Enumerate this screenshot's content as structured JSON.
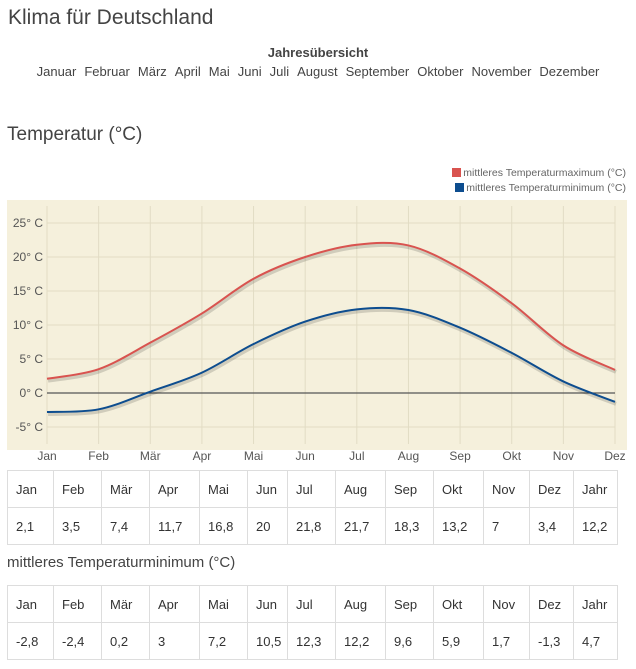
{
  "page_title": "Klima für Deutschland",
  "overview": {
    "label": "Jahresübersicht",
    "months": [
      "Januar",
      "Februar",
      "März",
      "April",
      "Mai",
      "Juni",
      "Juli",
      "August",
      "September",
      "Oktober",
      "November",
      "Dezember"
    ]
  },
  "section_title": "Temperatur (°C)",
  "colors": {
    "max": "#d9534f",
    "min": "#0d4d8f",
    "plot_bg": "#f5f0dc"
  },
  "chart_data": {
    "type": "line",
    "categories": [
      "Jan",
      "Feb",
      "Mär",
      "Apr",
      "Mai",
      "Jun",
      "Jul",
      "Aug",
      "Sep",
      "Okt",
      "Nov",
      "Dez"
    ],
    "y_ticks": [
      "25° C",
      "20° C",
      "15° C",
      "10° C",
      "5° C",
      "0° C",
      "-5° C"
    ],
    "ylim": [
      -7.5,
      27.5
    ],
    "series": [
      {
        "name": "mittleres Temperaturmaximum (°C)",
        "values": [
          2.1,
          3.5,
          7.4,
          11.7,
          16.8,
          20,
          21.8,
          21.7,
          18.3,
          13.2,
          7,
          3.4
        ]
      },
      {
        "name": "mittleres Temperaturminimum (°C)",
        "values": [
          -2.8,
          -2.4,
          0.2,
          3,
          7.2,
          10.5,
          12.3,
          12.2,
          9.6,
          5.9,
          1.7,
          -1.3
        ]
      }
    ]
  },
  "table_max": {
    "headers": [
      "Jan",
      "Feb",
      "Mär",
      "Apr",
      "Mai",
      "Jun",
      "Jul",
      "Aug",
      "Sep",
      "Okt",
      "Nov",
      "Dez",
      "Jahr"
    ],
    "values": [
      "2,1",
      "3,5",
      "7,4",
      "11,7",
      "16,8",
      "20",
      "21,8",
      "21,7",
      "18,3",
      "13,2",
      "7",
      "3,4",
      "12,2"
    ]
  },
  "table_min_title": "mittleres Temperaturminimum (°C)",
  "table_min": {
    "headers": [
      "Jan",
      "Feb",
      "Mär",
      "Apr",
      "Mai",
      "Jun",
      "Jul",
      "Aug",
      "Sep",
      "Okt",
      "Nov",
      "Dez",
      "Jahr"
    ],
    "values": [
      "-2,8",
      "-2,4",
      "0,2",
      "3",
      "7,2",
      "10,5",
      "12,3",
      "12,2",
      "9,6",
      "5,9",
      "1,7",
      "-1,3",
      "4,7"
    ]
  }
}
